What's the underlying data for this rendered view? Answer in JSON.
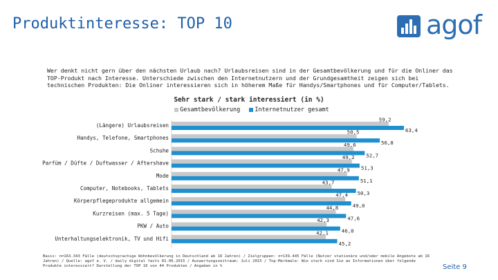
{
  "header": {
    "title": "Produktinteresse: TOP 10",
    "logo_text": "agof"
  },
  "intro_text": "Wer denkt nicht gern über den nächsten Urlaub nach? Urlaubsreisen sind in der Gesamtbevölkerung und für die Onliner das TOP-Produkt nach Interesse. Unterschiede zwischen den Internetnutzern und der Grundgesamtheit zeigen sich bei technischen Produkten: Die Onliner interessieren sich in höherem Maße für Handys/Smartphones und für Computer/Tablets.",
  "chart_data": {
    "type": "bar",
    "orientation": "horizontal",
    "title": "Sehr stark / stark interessiert (in %)",
    "categories": [
      "(Längere) Urlaubsreisen",
      "Handys, Telefone, Smartphones",
      "Schuhe",
      "Parfüm / Düfte / Duftwasser / Aftershave",
      "Mode",
      "Computer, Notebooks, Tablets",
      "Körperpflegeprodukte allgemein",
      "Kurzreisen (max. 5 Tage)",
      "PKW / Auto",
      "Unterhaltungselektronik, TV und Hifi"
    ],
    "series": [
      {
        "name": "Gesamtbevölkerung",
        "color": "#c8c8c8",
        "values": [
          59.2,
          50.5,
          49.6,
          49.2,
          47.9,
          43.7,
          47.4,
          44.8,
          42.3,
          42.1
        ],
        "labels": [
          "59,2",
          "50,5",
          "49,6",
          "49,2",
          "47,9",
          "43,7",
          "47,4",
          "44,8",
          "42,3",
          "42,1"
        ]
      },
      {
        "name": "Internetnutzer gesamt",
        "color": "#1e8fcf",
        "values": [
          63.4,
          56.8,
          52.7,
          51.3,
          51.1,
          50.3,
          49.0,
          47.6,
          46.0,
          45.2
        ],
        "labels": [
          "63,4",
          "56,8",
          "52,7",
          "51,3",
          "51,1",
          "50,3",
          "49,0",
          "47,6",
          "46,0",
          "45,2"
        ]
      }
    ],
    "legend": "top-center",
    "grid": false
  },
  "footnote": "Basis: n=163.343 Fälle (deutschsprachige Wohnbevölkerung in Deutschland ab 16 Jahren) / Zielgruppen: n=139.445 Fälle (Nutzer stationäre und/oder mobile Angebote ab 16 Jahren) / Quelle: agof e. V. / daily digital facts 02.06.2015 / Auswertungszeitraum: Juli 2015 / Top-Merkmale: Wie stark sind Sie an Informationen über folgende Produkte interessiert? Darstellung der TOP 10 von 44 Produkten / Angaben in %",
  "page_number": "Seite 9"
}
